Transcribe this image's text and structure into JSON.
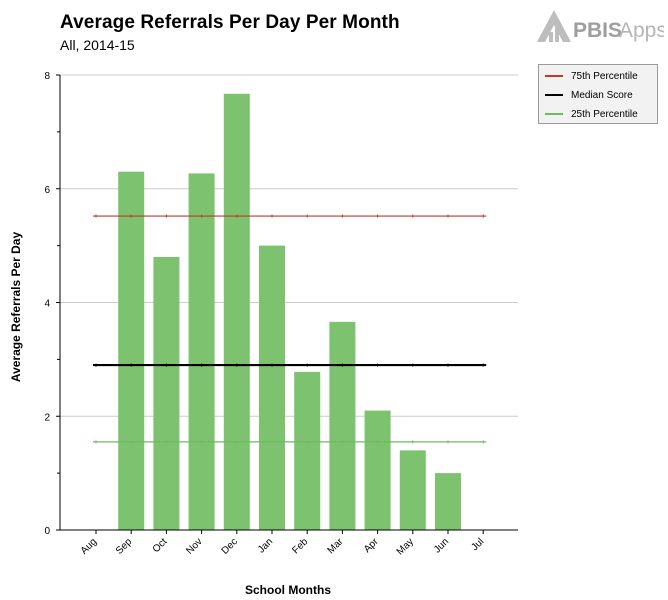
{
  "header": {
    "title": "Average Referrals Per Day Per Month",
    "subtitle": "All, 2014-15"
  },
  "logo": {
    "text_bold": "PBIS",
    "text_light": "Apps",
    "icon": "pbisapps-logo-icon"
  },
  "colors": {
    "bar": "#7dc36f",
    "p75": "#c0392b",
    "median": "#000000",
    "p25": "#6dbb5f",
    "grid": "#cccccc",
    "legend_bg": "#f2f2f2"
  },
  "legend": [
    {
      "label": "75th Percentile",
      "color": "#c0392b"
    },
    {
      "label": "Median Score",
      "color": "#000000"
    },
    {
      "label": "25th Percentile",
      "color": "#6dbb5f"
    }
  ],
  "chart_data": {
    "type": "bar",
    "title": "Average Referrals Per Day Per Month",
    "subtitle": "All, 2014-15",
    "xlabel": "School Months",
    "ylabel": "Average Referrals Per Day",
    "ylim": [
      0,
      8
    ],
    "yticks": [
      0,
      2,
      4,
      6,
      8
    ],
    "grid": true,
    "legend_position": "top-right",
    "categories": [
      "Aug",
      "Sep",
      "Oct",
      "Nov",
      "Dec",
      "Jan",
      "Feb",
      "Mar",
      "Apr",
      "May",
      "Jun",
      "Jul"
    ],
    "series": [
      {
        "values": [
          0,
          6.3,
          4.8,
          6.27,
          7.67,
          5.0,
          2.78,
          3.66,
          2.1,
          1.4,
          1.0,
          0
        ]
      }
    ],
    "reference_lines": [
      {
        "name": "75th Percentile",
        "value": 5.52
      },
      {
        "name": "Median Score",
        "value": 2.9
      },
      {
        "name": "25th Percentile",
        "value": 1.55
      }
    ]
  }
}
